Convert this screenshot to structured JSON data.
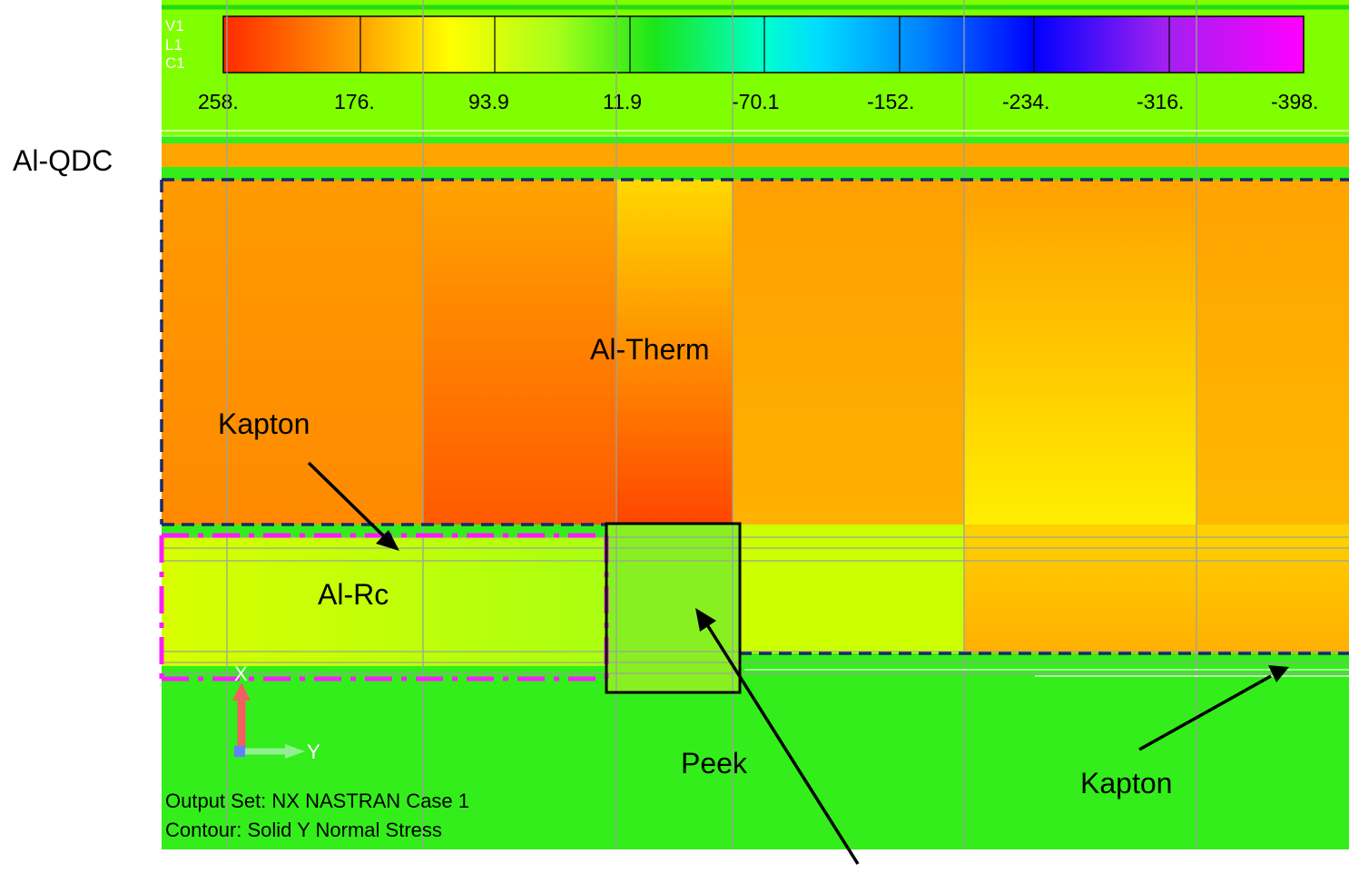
{
  "viewport": {
    "tags": [
      "V1",
      "L1",
      "C1"
    ],
    "background": "#33ee1a"
  },
  "legend": {
    "ticks": [
      "258.",
      "176.",
      "93.9",
      "11.9",
      "-70.1",
      "-152.",
      "-234.",
      "-316.",
      "-398."
    ],
    "colors": [
      "#ff2a00",
      "#ffa000",
      "#ffff00",
      "#a6ff1a",
      "#1ae61a",
      "#00ffcc",
      "#00ccff",
      "#0040ff",
      "#0000ff",
      "#a020f0",
      "#ff00ff"
    ]
  },
  "info": {
    "output_set": "Output Set: NX NASTRAN Case 1",
    "contour": "Contour: Solid Y Normal Stress"
  },
  "axes": {
    "x": "X",
    "y": "Y"
  },
  "labels": {
    "al_qdc": "Al-QDC",
    "al_therm": "Al-Therm",
    "kapton_left": "Kapton",
    "al_rc": "Al-Rc",
    "peek": "Peek",
    "kapton_right": "Kapton"
  },
  "colors": {
    "green": "#33ee1a",
    "dashed_navy": "#1a2a66",
    "magenta": "#ff1aff",
    "arrow_red": "#f06060",
    "arrow_green": "#80f080"
  }
}
